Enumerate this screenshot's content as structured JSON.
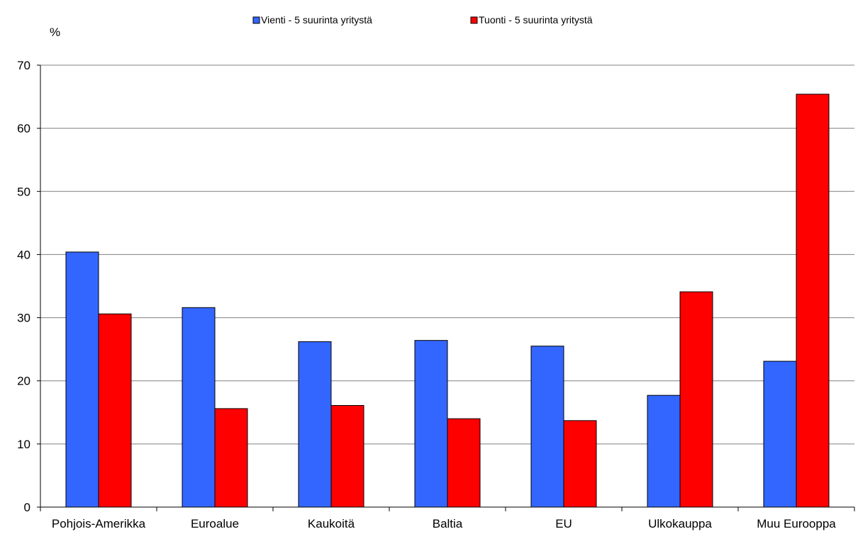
{
  "chart_data": {
    "type": "bar",
    "unit_label": "%",
    "categories": [
      "Pohjois-Amerikka",
      "Euroalue",
      "Kaukoitä",
      "Baltia",
      "EU",
      "Ulkokauppa",
      "Muu Eurooppa"
    ],
    "series": [
      {
        "name": "Vienti - 5 suurinta yritystä",
        "color": "#3366ff",
        "values": [
          40.4,
          31.6,
          26.2,
          26.4,
          25.5,
          17.7,
          23.1
        ]
      },
      {
        "name": "Tuonti - 5 suurinta yritystä",
        "color": "#ff0000",
        "values": [
          30.6,
          15.6,
          16.1,
          14.0,
          13.7,
          34.1,
          65.4
        ]
      }
    ],
    "ylim": [
      0,
      70
    ],
    "yticks": [
      0,
      10,
      20,
      30,
      40,
      50,
      60,
      70
    ],
    "grid": true,
    "legend_position": "top-center"
  }
}
